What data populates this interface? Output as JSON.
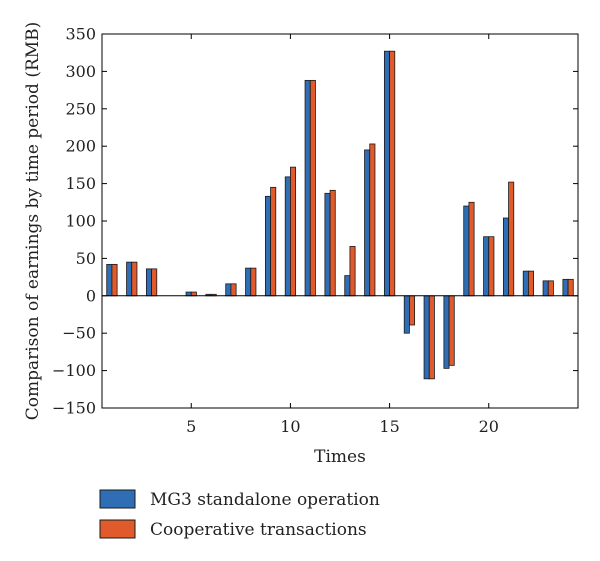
{
  "chart_data": {
    "type": "bar",
    "title": "",
    "xlabel": "Times",
    "ylabel": "Comparison of earnings by time period (RMB)",
    "x": [
      1,
      2,
      3,
      4,
      5,
      6,
      7,
      8,
      9,
      10,
      11,
      12,
      13,
      14,
      15,
      16,
      17,
      18,
      19,
      20,
      21,
      22,
      23,
      24
    ],
    "xlim": [
      0.5,
      24.5
    ],
    "ylim": [
      -150,
      350
    ],
    "xticks": [
      5,
      10,
      15,
      20
    ],
    "yticks": [
      -150,
      -100,
      -50,
      0,
      50,
      100,
      150,
      200,
      250,
      300,
      350
    ],
    "xtick_labels": [
      "5",
      "10",
      "15",
      "20"
    ],
    "ytick_labels": [
      "−150",
      "−100",
      "−50",
      "0",
      "50",
      "100",
      "150",
      "200",
      "250",
      "300",
      "350"
    ],
    "grid": false,
    "legend_position": "bottom-left-outside",
    "series": [
      {
        "name": "MG3 standalone operation",
        "color": "#2f6eb5",
        "values": [
          42,
          45,
          36,
          0,
          5,
          2,
          16,
          37,
          133,
          159,
          288,
          137,
          27,
          195,
          327,
          -50,
          -111,
          -97,
          120,
          79,
          104,
          33,
          20,
          22
        ]
      },
      {
        "name": "Cooperative transactions",
        "color": "#e05a2b",
        "values": [
          42,
          45,
          36,
          0,
          5,
          2,
          16,
          37,
          145,
          172,
          288,
          141,
          66,
          203,
          327,
          -39,
          -111,
          -93,
          125,
          79,
          152,
          33,
          20,
          22
        ]
      }
    ]
  }
}
